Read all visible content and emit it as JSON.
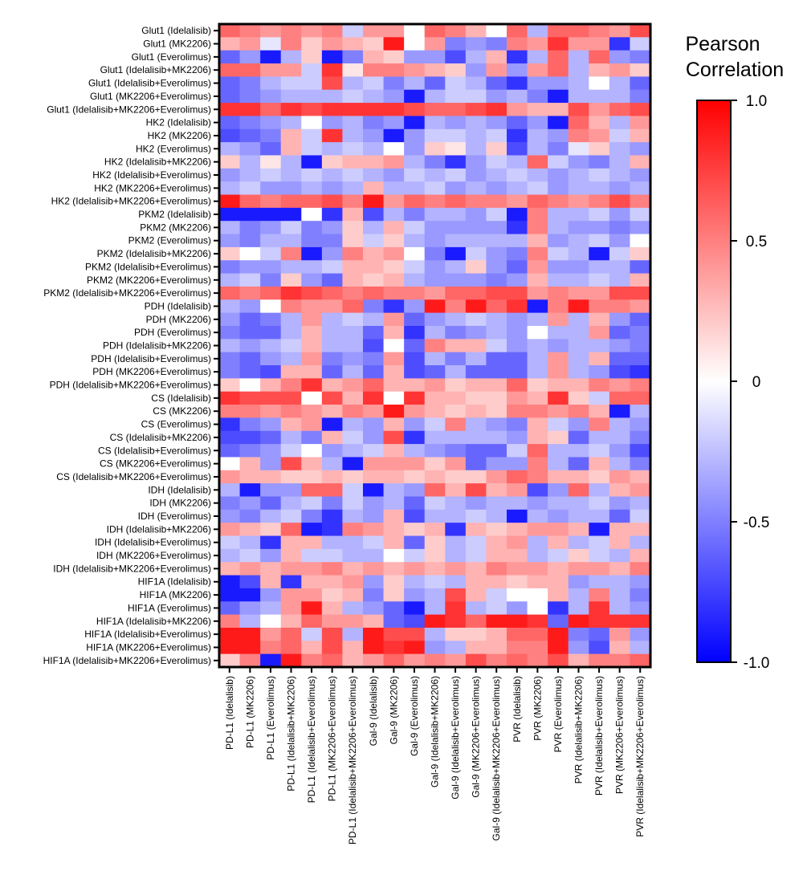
{
  "chart_data": {
    "type": "heatmap",
    "title": "",
    "xlabel": "",
    "ylabel": "",
    "rows": [
      "Glut1 (Idelalisib)",
      "Glut1 (MK2206)",
      "Glut1 (Everolimus)",
      "Glut1 (Idelalisib+MK2206)",
      "Glut1 (Idelalisib+Everolimus)",
      "Glut1 (MK2206+Everolimus)",
      "Glut1 (Idelalisib+MK2206+Everolimus)",
      "HK2 (Idelalisib)",
      "HK2 (MK2206)",
      "HK2 (Everolimus)",
      "HK2 (Idelalisib+MK2206)",
      "HK2 (Idelalisib+Everolimus)",
      "HK2 (MK2206+Everolimus)",
      "HK2 (Idelalisib+MK2206+Everolimus)",
      "PKM2 (Idelalisib)",
      "PKM2 (MK2206)",
      "PKM2 (Everolimus)",
      "PKM2 (Idelalisib+MK2206)",
      "PKM2 (Idelalisib+Everolimus)",
      "PKM2 (MK2206+Everolimus)",
      "PKM2 (Idelalisib+MK2206+Everolimus)",
      "PDH (Idelalisib)",
      "PDH (MK2206)",
      "PDH (Everolimus)",
      "PDH (Idelalisib+MK2206)",
      "PDH (Idelalisib+Everolimus)",
      "PDH (MK2206+Everolimus)",
      "PDH (Idelalisib+MK2206+Everolimus)",
      "CS (Idelalisib)",
      "CS (MK2206)",
      "CS (Everolimus)",
      "CS (Idelalisib+MK2206)",
      "CS (Idelalisib+Everolimus)",
      "CS (MK2206+Everolimus)",
      "CS (Idelalisib+MK2206+Everolimus)",
      "IDH (Idelalisib)",
      "IDH (MK2206)",
      "IDH (Everolimus)",
      "IDH (Idelalisib+MK2206)",
      "IDH (Idelalisib+Everolimus)",
      "IDH (MK2206+Everolimus)",
      "IDH (Idelalisib+MK2206+Everolimus)",
      "HIF1A (Idelalisib)",
      "HIF1A (MK2206)",
      "HIF1A (Everolimus)",
      "HIF1A (Idelalisib+MK2206)",
      "HIF1A (Idelalisib+Everolimus)",
      "HIF1A (MK2206+Everolimus)",
      "HIF1A (Idelalisib+MK2206+Everolimus)"
    ],
    "columns": [
      "PD-L1 (Idelalisib)",
      "PD-L1 (MK2206)",
      "PD-L1 (Everolimus)",
      "PD-L1 (Idelalisib+MK2206)",
      "PD-L1 (Idelalisib+Everolimus)",
      "PD-L1 (MK2206+Everolimus)",
      "PD-L1 (Idelalisib+MK2206+Everolimus)",
      "Gal-9 (Idelalisib)",
      "Gal-9 (MK2206)",
      "Gal-9 (Everolimus)",
      "Gal-9 (Idelalisib+MK2206)",
      "Gal-9 (Idelalisib+Everolimus)",
      "Gal-9 (MK2206+Everolimus)",
      "Gal-9 (Idelalisib+MK2206+Everolimus)",
      "PVR (Idelalisib)",
      "PVR (MK2206)",
      "PVR (Everolimus)",
      "PVR (Idelalisib+MK2206)",
      "PVR (Idelalisib+Everolimus)",
      "PVR (MK2206+Everolimus)",
      "PVR (Idelalisib+MK2206+Everolimus)"
    ],
    "values": [
      [
        0.6,
        0.5,
        0.4,
        0.5,
        0.4,
        0.5,
        -0.2,
        0.4,
        0.4,
        0.0,
        0.6,
        0.5,
        0.3,
        0.0,
        0.6,
        -0.3,
        0.6,
        0.6,
        0.5,
        0.4,
        0.7
      ],
      [
        0.3,
        0.4,
        -0.1,
        0.5,
        0.2,
        0.4,
        0.3,
        0.2,
        0.9,
        0.0,
        0.4,
        -0.5,
        -0.4,
        -0.5,
        0.5,
        0.4,
        0.8,
        0.4,
        0.4,
        -0.8,
        -0.2
      ],
      [
        -0.6,
        -0.4,
        -0.9,
        -0.3,
        0.2,
        -0.9,
        -0.5,
        0.3,
        0.2,
        -0.4,
        -0.4,
        -0.7,
        -0.3,
        0.3,
        -0.8,
        -0.3,
        0.6,
        -0.3,
        0.6,
        -0.4,
        -0.5
      ],
      [
        0.6,
        0.6,
        0.4,
        0.4,
        -0.2,
        0.8,
        0.1,
        0.5,
        0.5,
        0.4,
        0.3,
        0.2,
        -0.4,
        0.4,
        -0.4,
        0.4,
        0.6,
        -0.3,
        0.3,
        0.4,
        0.2
      ],
      [
        -0.6,
        -0.5,
        -0.3,
        -0.2,
        -0.2,
        0.7,
        -0.3,
        -0.2,
        -0.5,
        -0.3,
        -0.6,
        -0.2,
        -0.3,
        -0.6,
        -0.8,
        -0.4,
        -0.4,
        -0.3,
        0.0,
        -0.3,
        -0.6
      ],
      [
        -0.6,
        -0.5,
        -0.4,
        -0.3,
        -0.3,
        -0.3,
        -0.2,
        -0.3,
        -0.4,
        -0.9,
        -0.3,
        -0.2,
        -0.2,
        -0.4,
        -0.3,
        -0.5,
        -0.9,
        -0.3,
        -0.3,
        -0.3,
        -0.5
      ],
      [
        0.8,
        0.8,
        0.6,
        0.8,
        0.7,
        0.8,
        0.8,
        0.8,
        0.8,
        0.7,
        0.6,
        0.6,
        0.7,
        0.8,
        0.4,
        0.3,
        0.3,
        0.7,
        0.4,
        0.6,
        0.7
      ],
      [
        -0.6,
        -0.5,
        -0.4,
        -0.3,
        0.0,
        -0.4,
        -0.3,
        -0.5,
        -0.4,
        -0.9,
        -0.3,
        -0.4,
        -0.3,
        -0.4,
        -0.6,
        -0.4,
        -0.9,
        0.6,
        0.3,
        -0.3,
        0.4
      ],
      [
        -0.7,
        -0.6,
        -0.5,
        0.3,
        -0.2,
        0.8,
        -0.3,
        -0.4,
        -0.9,
        -0.4,
        -0.2,
        -0.2,
        -0.3,
        -0.2,
        -0.8,
        -0.3,
        -0.4,
        0.5,
        0.4,
        -0.2,
        0.3
      ],
      [
        -0.3,
        -0.4,
        -0.6,
        0.3,
        -0.2,
        -0.3,
        -0.2,
        -0.3,
        0.0,
        -0.4,
        0.2,
        0.1,
        -0.3,
        0.2,
        -0.7,
        -0.3,
        -0.5,
        -0.1,
        0.2,
        -0.3,
        -0.4
      ],
      [
        0.2,
        -0.3,
        0.1,
        -0.3,
        -0.9,
        0.2,
        0.3,
        0.3,
        0.4,
        -0.3,
        -0.5,
        -0.8,
        -0.4,
        -0.2,
        -0.3,
        0.6,
        -0.2,
        -0.4,
        -0.5,
        -0.3,
        0.3
      ],
      [
        -0.4,
        -0.3,
        -0.2,
        -0.3,
        -0.2,
        -0.3,
        -0.2,
        -0.3,
        -0.4,
        -0.2,
        -0.3,
        -0.2,
        -0.4,
        -0.3,
        -0.2,
        -0.3,
        -0.4,
        -0.3,
        -0.2,
        -0.3,
        -0.4
      ],
      [
        -0.3,
        -0.2,
        -0.4,
        -0.4,
        -0.3,
        -0.4,
        -0.3,
        0.3,
        -0.3,
        -0.3,
        -0.2,
        -0.4,
        -0.3,
        -0.4,
        -0.3,
        -0.2,
        -0.4,
        -0.3,
        -0.3,
        -0.4,
        -0.3
      ],
      [
        0.9,
        0.6,
        0.5,
        0.6,
        0.6,
        0.7,
        0.5,
        0.9,
        0.4,
        0.6,
        0.5,
        0.6,
        0.5,
        0.5,
        0.4,
        0.6,
        0.5,
        0.4,
        0.5,
        0.7,
        0.5
      ],
      [
        -0.9,
        -0.9,
        -0.9,
        -0.9,
        0.0,
        -0.8,
        0.3,
        -0.7,
        -0.3,
        -0.5,
        -0.3,
        -0.3,
        -0.4,
        -0.2,
        -0.9,
        0.5,
        -0.3,
        -0.3,
        -0.2,
        -0.4,
        -0.2
      ],
      [
        -0.3,
        -0.5,
        -0.4,
        -0.2,
        -0.5,
        -0.4,
        0.2,
        -0.3,
        0.3,
        -0.2,
        -0.4,
        -0.4,
        -0.4,
        -0.4,
        -0.8,
        0.5,
        -0.3,
        -0.4,
        -0.4,
        -0.5,
        -0.4
      ],
      [
        -0.4,
        -0.5,
        -0.3,
        -0.3,
        -0.5,
        -0.5,
        0.2,
        -0.2,
        0.2,
        -0.3,
        -0.4,
        -0.3,
        -0.3,
        -0.3,
        -0.3,
        0.3,
        -0.4,
        -0.3,
        -0.2,
        -0.4,
        0.0
      ],
      [
        0.2,
        0.0,
        -0.2,
        0.5,
        -0.9,
        -0.4,
        0.5,
        0.3,
        0.4,
        0.0,
        -0.5,
        -0.9,
        -0.2,
        -0.4,
        -0.5,
        0.5,
        -0.2,
        -0.3,
        -0.9,
        -0.2,
        0.2
      ],
      [
        -0.5,
        -0.4,
        -0.4,
        -0.3,
        -0.3,
        -0.2,
        0.3,
        0.3,
        0.2,
        -0.2,
        -0.4,
        -0.3,
        0.2,
        -0.4,
        -0.6,
        0.4,
        -0.4,
        -0.4,
        -0.3,
        -0.3,
        -0.6
      ],
      [
        -0.3,
        -0.2,
        -0.5,
        0.2,
        -0.4,
        -0.6,
        0.3,
        0.2,
        0.3,
        -0.3,
        -0.4,
        -0.4,
        -0.4,
        -0.5,
        -0.4,
        0.3,
        -0.3,
        -0.3,
        -0.2,
        -0.3,
        0.3
      ],
      [
        0.6,
        0.5,
        0.6,
        0.8,
        0.7,
        0.6,
        0.5,
        0.6,
        0.5,
        0.5,
        0.4,
        0.6,
        0.6,
        0.7,
        0.7,
        0.4,
        0.5,
        0.4,
        0.4,
        0.7,
        0.7
      ],
      [
        -0.3,
        -0.4,
        0.0,
        0.5,
        0.4,
        0.4,
        0.6,
        -0.5,
        -0.8,
        -0.4,
        0.9,
        0.5,
        0.9,
        0.6,
        0.8,
        -0.9,
        0.5,
        0.9,
        0.5,
        0.5,
        0.4
      ],
      [
        -0.4,
        -0.6,
        -0.5,
        -0.3,
        0.4,
        -0.3,
        -0.2,
        -0.3,
        0.4,
        -0.6,
        -0.4,
        -0.3,
        -0.2,
        -0.3,
        -0.4,
        -0.3,
        0.4,
        -0.3,
        0.3,
        -0.4,
        -0.6
      ],
      [
        -0.5,
        -0.6,
        -0.6,
        -0.3,
        0.3,
        -0.3,
        -0.3,
        -0.6,
        0.3,
        -0.8,
        -0.3,
        -0.5,
        -0.4,
        -0.3,
        -0.4,
        0.0,
        -0.3,
        -0.3,
        0.4,
        -0.6,
        -0.5
      ],
      [
        -0.3,
        -0.4,
        -0.3,
        -0.2,
        0.3,
        -0.3,
        -0.3,
        -0.7,
        0.0,
        -0.6,
        0.5,
        0.3,
        0.3,
        -0.2,
        -0.4,
        -0.3,
        -0.4,
        -0.3,
        -0.3,
        -0.4,
        -0.5
      ],
      [
        -0.5,
        -0.6,
        -0.4,
        -0.3,
        0.4,
        -0.5,
        -0.4,
        -0.5,
        0.4,
        -0.7,
        -0.3,
        -0.5,
        -0.3,
        -0.6,
        -0.6,
        -0.3,
        0.4,
        -0.3,
        0.3,
        -0.6,
        -0.6
      ],
      [
        -0.5,
        -0.6,
        -0.7,
        0.3,
        0.3,
        -0.6,
        -0.3,
        -0.6,
        0.3,
        -0.7,
        -0.6,
        -0.3,
        -0.6,
        -0.6,
        -0.6,
        -0.3,
        0.4,
        -0.3,
        -0.4,
        -0.7,
        -0.8
      ],
      [
        0.2,
        0.0,
        0.3,
        0.5,
        0.8,
        0.3,
        0.4,
        0.6,
        0.3,
        0.3,
        0.4,
        0.2,
        0.3,
        0.3,
        0.6,
        0.2,
        0.3,
        0.3,
        0.5,
        0.4,
        0.5
      ],
      [
        0.8,
        0.7,
        0.7,
        0.7,
        0.0,
        0.7,
        0.3,
        0.8,
        0.0,
        0.8,
        0.3,
        0.3,
        0.2,
        0.2,
        0.4,
        0.3,
        0.8,
        0.2,
        -0.2,
        0.6,
        0.6
      ],
      [
        0.5,
        0.5,
        0.4,
        0.5,
        0.4,
        0.3,
        0.5,
        0.4,
        0.9,
        0.4,
        0.3,
        0.2,
        0.3,
        0.2,
        0.5,
        0.5,
        0.4,
        0.5,
        0.3,
        -0.9,
        -0.3
      ],
      [
        -0.8,
        -0.5,
        -0.4,
        0.3,
        0.4,
        -0.9,
        -0.3,
        -0.4,
        0.3,
        -0.4,
        -0.2,
        0.5,
        -0.3,
        -0.4,
        -0.5,
        0.3,
        -0.2,
        -0.4,
        0.5,
        -0.3,
        -0.4
      ],
      [
        -0.7,
        -0.7,
        -0.6,
        -0.3,
        -0.5,
        0.3,
        -0.2,
        -0.4,
        0.7,
        -0.8,
        -0.3,
        -0.3,
        -0.3,
        -0.3,
        -0.4,
        0.3,
        0.2,
        -0.6,
        -0.3,
        -0.3,
        -0.5
      ],
      [
        -0.6,
        -0.5,
        -0.4,
        -0.2,
        0.0,
        -0.4,
        -0.3,
        -0.2,
        0.3,
        -0.3,
        -0.4,
        -0.5,
        -0.6,
        -0.6,
        -0.2,
        0.6,
        -0.3,
        -0.3,
        -0.2,
        -0.4,
        -0.7
      ],
      [
        0.0,
        0.3,
        -0.4,
        0.7,
        0.3,
        -0.3,
        -0.9,
        0.4,
        0.4,
        0.4,
        0.2,
        0.4,
        -0.6,
        -0.4,
        -0.4,
        0.5,
        -0.3,
        -0.6,
        0.3,
        -0.3,
        -0.5
      ],
      [
        0.4,
        0.3,
        0.3,
        0.2,
        0.2,
        0.3,
        0.2,
        0.3,
        0.3,
        0.2,
        0.3,
        0.2,
        0.2,
        0.4,
        0.6,
        0.5,
        0.3,
        0.3,
        0.2,
        0.4,
        0.3
      ],
      [
        -0.3,
        -0.9,
        -0.4,
        -0.4,
        0.6,
        0.6,
        -0.2,
        -0.9,
        -0.3,
        -0.4,
        0.6,
        0.3,
        0.7,
        0.3,
        0.4,
        -0.7,
        -0.4,
        0.6,
        -0.3,
        0.3,
        0.4
      ],
      [
        -0.5,
        -0.4,
        -0.6,
        -0.3,
        -0.2,
        -0.5,
        -0.2,
        -0.4,
        -0.3,
        -0.6,
        -0.2,
        -0.3,
        -0.4,
        -0.3,
        -0.3,
        -0.4,
        -0.3,
        -0.3,
        -0.2,
        -0.4,
        -0.3
      ],
      [
        -0.4,
        -0.5,
        -0.3,
        -0.2,
        -0.5,
        -0.8,
        -0.3,
        -0.4,
        0.3,
        -0.7,
        -0.3,
        -0.3,
        -0.2,
        -0.3,
        -0.9,
        -0.3,
        -0.4,
        -0.3,
        -0.3,
        -0.6,
        -0.2
      ],
      [
        0.4,
        0.3,
        0.2,
        0.6,
        -0.9,
        -0.8,
        0.5,
        0.4,
        0.3,
        0.2,
        0.3,
        -0.8,
        0.3,
        0.2,
        0.3,
        0.4,
        0.4,
        0.3,
        -0.9,
        0.3,
        0.3
      ],
      [
        -0.2,
        -0.3,
        -0.8,
        0.3,
        0.3,
        -0.3,
        -0.3,
        -0.2,
        0.3,
        -0.6,
        0.2,
        -0.3,
        -0.2,
        0.3,
        0.4,
        -0.3,
        0.3,
        -0.3,
        -0.2,
        0.3,
        -0.3
      ],
      [
        -0.3,
        -0.2,
        -0.4,
        0.3,
        -0.2,
        -0.2,
        -0.3,
        -0.3,
        0.0,
        -0.2,
        0.2,
        -0.3,
        -0.2,
        0.3,
        0.3,
        -0.3,
        -0.2,
        0.2,
        -0.2,
        -0.3,
        0.3
      ],
      [
        0.3,
        0.4,
        0.3,
        0.4,
        0.4,
        0.5,
        0.3,
        0.4,
        0.3,
        0.4,
        0.3,
        0.4,
        0.3,
        0.5,
        0.4,
        0.4,
        0.3,
        0.4,
        0.4,
        0.3,
        0.5
      ],
      [
        -0.9,
        -0.7,
        0.3,
        -0.8,
        0.3,
        0.3,
        0.4,
        -0.4,
        0.2,
        -0.3,
        -0.2,
        -0.3,
        0.3,
        0.3,
        0.2,
        0.3,
        0.3,
        -0.4,
        -0.3,
        -0.3,
        -0.4
      ],
      [
        -0.9,
        -0.9,
        -0.4,
        0.4,
        0.4,
        0.2,
        0.3,
        -0.5,
        0.2,
        -0.4,
        -0.3,
        0.7,
        0.3,
        -0.2,
        0.0,
        0.0,
        0.3,
        -0.3,
        0.5,
        -0.3,
        -0.5
      ],
      [
        -0.6,
        -0.4,
        -0.3,
        0.4,
        0.9,
        0.3,
        -0.3,
        -0.4,
        -0.6,
        -0.9,
        -0.3,
        0.8,
        -0.3,
        -0.2,
        -0.4,
        0.0,
        -0.8,
        -0.3,
        0.8,
        -0.3,
        -0.4
      ],
      [
        0.5,
        -0.3,
        0.0,
        0.3,
        0.6,
        0.4,
        0.4,
        0.3,
        -0.6,
        -0.7,
        0.9,
        0.8,
        0.6,
        0.9,
        0.9,
        0.8,
        -0.6,
        0.9,
        0.8,
        0.8,
        0.8
      ],
      [
        0.9,
        0.9,
        0.4,
        0.6,
        -0.2,
        0.7,
        -0.3,
        0.9,
        0.7,
        0.7,
        -0.3,
        0.2,
        0.2,
        0.3,
        0.6,
        0.6,
        0.9,
        -0.5,
        -0.6,
        0.4,
        -0.4
      ],
      [
        0.9,
        0.9,
        0.5,
        0.6,
        0.3,
        0.7,
        0.3,
        0.9,
        0.8,
        0.9,
        -0.4,
        -0.3,
        0.3,
        0.3,
        0.5,
        0.5,
        0.9,
        -0.4,
        -0.7,
        0.3,
        -0.3
      ],
      [
        0.2,
        0.5,
        -0.9,
        0.9,
        0.5,
        0.6,
        0.3,
        0.4,
        0.6,
        0.4,
        0.5,
        0.4,
        0.7,
        0.5,
        0.6,
        0.5,
        0.7,
        0.3,
        0.5,
        0.5,
        0.6
      ]
    ],
    "colorscale": {
      "min": -1.0,
      "max": 1.0,
      "low_color": "#0000ff",
      "mid_color": "#ffffff",
      "high_color": "#ff0000"
    },
    "colorbar": {
      "title_lines": [
        "Pearson",
        "Correlation"
      ],
      "ticks": [
        {
          "value": 1.0,
          "label": "1.0"
        },
        {
          "value": 0.5,
          "label": "0.5"
        },
        {
          "value": 0.0,
          "label": "0"
        },
        {
          "value": -0.5,
          "label": "-0.5"
        },
        {
          "value": -1.0,
          "label": "-1.0"
        }
      ]
    },
    "legend_position": "right"
  }
}
